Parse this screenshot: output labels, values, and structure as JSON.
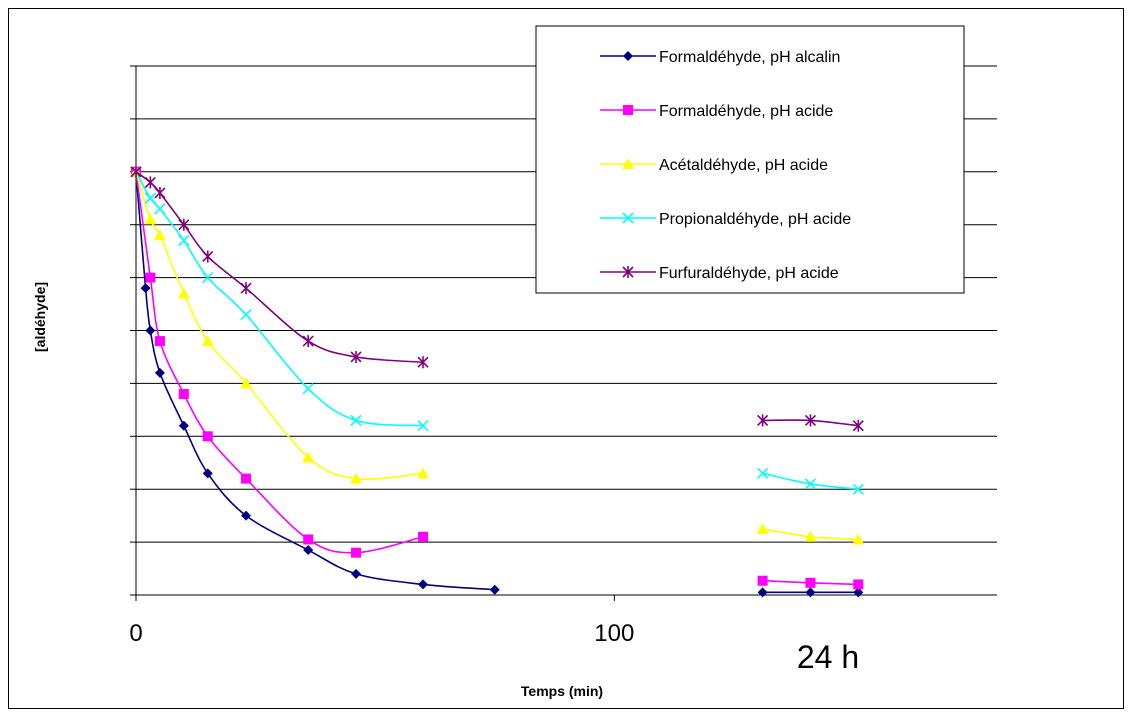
{
  "chart_data": {
    "type": "line",
    "title": "",
    "xlabel": "Temps (min)",
    "ylabel": "[aldéhyde]",
    "xticks": [
      "0",
      "100"
    ],
    "xlim": [
      0,
      180
    ],
    "ylim": [
      0,
      10
    ],
    "grid": "horizontal",
    "yticks_labelled": false,
    "legend_position": "top-right",
    "annotations": [
      {
        "text": "24 h",
        "x": 143,
        "y": -1.1
      }
    ],
    "gaps_after_x": [
      80,
      130
    ],
    "series": [
      {
        "name": "Formaldéhyde, pH alcalin",
        "color": "#000080",
        "marker": "diamond",
        "x": [
          0,
          2,
          3,
          5,
          10,
          15,
          23,
          36,
          46,
          60,
          75,
          131,
          141,
          151
        ],
        "y": [
          8,
          5.8,
          5.0,
          4.2,
          3.2,
          2.3,
          1.5,
          0.85,
          0.4,
          0.2,
          0.1,
          0.05,
          0.05,
          0.05
        ]
      },
      {
        "name": "Formaldéhyde, pH acide",
        "color": "#ff00ff",
        "marker": "square",
        "x": [
          0,
          3,
          5,
          10,
          15,
          23,
          36,
          46,
          60,
          131,
          141,
          151
        ],
        "y": [
          8,
          6.0,
          4.8,
          3.8,
          3.0,
          2.2,
          1.05,
          0.8,
          1.1,
          0.27,
          0.23,
          0.2
        ]
      },
      {
        "name": "Acétaldéhyde, pH acide",
        "color": "#ffff00",
        "marker": "triangle",
        "x": [
          0,
          3,
          5,
          10,
          15,
          23,
          36,
          46,
          60,
          131,
          141,
          151
        ],
        "y": [
          8,
          7.1,
          6.8,
          5.7,
          4.8,
          4.0,
          2.6,
          2.2,
          2.3,
          1.25,
          1.1,
          1.05
        ]
      },
      {
        "name": "Propionaldéhyde, pH acide",
        "color": "#00ffff",
        "marker": "x",
        "x": [
          0,
          3,
          5,
          10,
          15,
          23,
          36,
          46,
          60,
          131,
          141,
          151
        ],
        "y": [
          8,
          7.5,
          7.3,
          6.7,
          6.0,
          5.3,
          3.9,
          3.3,
          3.2,
          2.3,
          2.1,
          2.0
        ]
      },
      {
        "name": "Furfuraldéhyde, pH acide",
        "color": "#800080",
        "marker": "star",
        "x": [
          0,
          3,
          5,
          10,
          15,
          23,
          36,
          46,
          60,
          131,
          141,
          151
        ],
        "y": [
          8,
          7.8,
          7.6,
          7.0,
          6.4,
          5.8,
          4.8,
          4.5,
          4.4,
          3.3,
          3.3,
          3.2
        ]
      }
    ]
  }
}
